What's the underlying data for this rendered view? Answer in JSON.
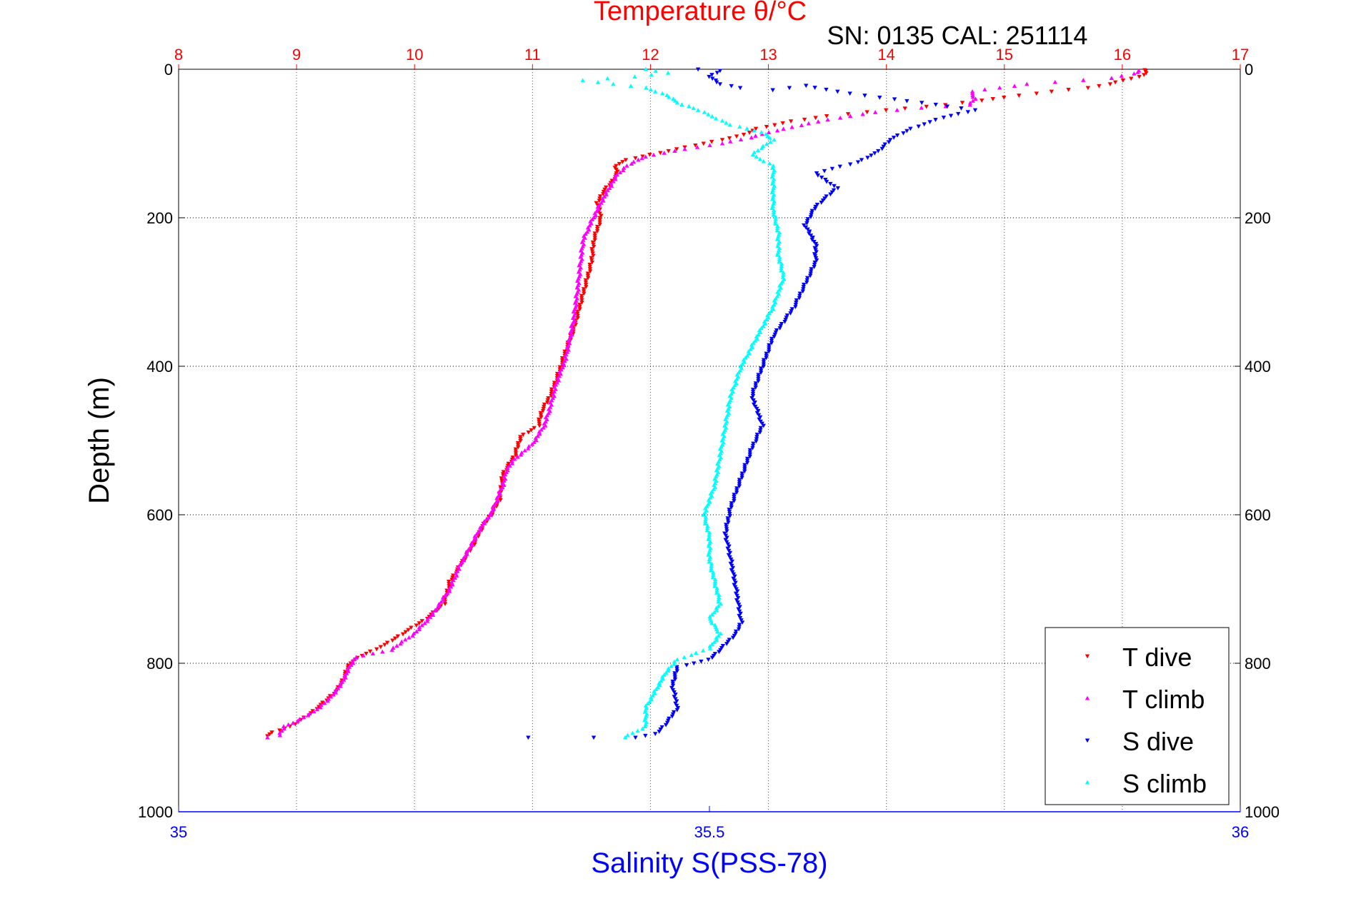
{
  "chart_data": {
    "type": "scatter",
    "title": "Temperature θ/°C",
    "subtitle": "SN: 0135  CAL: 251114",
    "ylabel": "Depth (m)",
    "xlabel": "Salinity S(PSS-78)",
    "ylim": [
      0,
      1000
    ],
    "y_reversed": true,
    "temperature_axis": {
      "position": "top",
      "range": [
        8,
        17
      ],
      "ticks": [
        "8",
        "9",
        "10",
        "11",
        "12",
        "13",
        "14",
        "15",
        "16",
        "17"
      ],
      "color": "#ff0000"
    },
    "salinity_axis": {
      "position": "bottom",
      "range": [
        35,
        36
      ],
      "ticks": [
        "35",
        "35.5",
        "36"
      ],
      "tick_values": [
        35,
        35.5,
        36
      ],
      "color": "#0000ff"
    },
    "depth_ticks": [
      "0",
      "200",
      "400",
      "600",
      "800",
      "1000"
    ],
    "depth_tick_values": [
      0,
      200,
      400,
      600,
      800,
      1000
    ],
    "grid": true,
    "legend_position": "bottom-right",
    "series": [
      {
        "name": "T dive",
        "axis": "temperature",
        "color": "#ff0000",
        "marker": "triangle-down",
        "points": [
          [
            16.2,
            1
          ],
          [
            16.2,
            5
          ],
          [
            16.15,
            10
          ],
          [
            16.0,
            15
          ],
          [
            15.9,
            20
          ],
          [
            15.7,
            25
          ],
          [
            15.4,
            30
          ],
          [
            15.0,
            38
          ],
          [
            14.8,
            42
          ],
          [
            14.5,
            48
          ],
          [
            14.0,
            55
          ],
          [
            13.5,
            63
          ],
          [
            13.2,
            70
          ],
          [
            12.9,
            80
          ],
          [
            12.8,
            88
          ],
          [
            12.6,
            95
          ],
          [
            12.3,
            105
          ],
          [
            12.0,
            115
          ],
          [
            11.8,
            122
          ],
          [
            11.7,
            130
          ],
          [
            11.72,
            140
          ],
          [
            11.68,
            150
          ],
          [
            11.6,
            165
          ],
          [
            11.55,
            180
          ],
          [
            11.58,
            200
          ],
          [
            11.55,
            215
          ],
          [
            11.52,
            230
          ],
          [
            11.5,
            260
          ],
          [
            11.45,
            290
          ],
          [
            11.4,
            320
          ],
          [
            11.35,
            350
          ],
          [
            11.28,
            380
          ],
          [
            11.22,
            410
          ],
          [
            11.15,
            440
          ],
          [
            11.08,
            460
          ],
          [
            11.05,
            480
          ],
          [
            10.9,
            495
          ],
          [
            10.85,
            520
          ],
          [
            10.75,
            545
          ],
          [
            10.72,
            580
          ],
          [
            10.65,
            600
          ],
          [
            10.58,
            615
          ],
          [
            10.5,
            640
          ],
          [
            10.4,
            665
          ],
          [
            10.3,
            690
          ],
          [
            10.25,
            720
          ],
          [
            10.1,
            740
          ],
          [
            9.95,
            755
          ],
          [
            9.75,
            775
          ],
          [
            9.55,
            790
          ],
          [
            9.45,
            800
          ],
          [
            9.4,
            820
          ],
          [
            9.35,
            835
          ],
          [
            9.25,
            850
          ],
          [
            9.1,
            870
          ],
          [
            8.95,
            885
          ],
          [
            8.8,
            893
          ],
          [
            8.75,
            898
          ]
        ]
      },
      {
        "name": "T climb",
        "axis": "temperature",
        "color": "#ff00ff",
        "marker": "triangle-up",
        "points": [
          [
            8.75,
            900
          ],
          [
            8.85,
            897
          ],
          [
            8.9,
            885
          ],
          [
            9.0,
            878
          ],
          [
            9.15,
            865
          ],
          [
            9.28,
            848
          ],
          [
            9.38,
            828
          ],
          [
            9.45,
            805
          ],
          [
            9.5,
            792
          ],
          [
            9.8,
            782
          ],
          [
            10.0,
            760
          ],
          [
            10.15,
            735
          ],
          [
            10.3,
            700
          ],
          [
            10.38,
            670
          ],
          [
            10.45,
            650
          ],
          [
            10.55,
            620
          ],
          [
            10.65,
            598
          ],
          [
            10.75,
            560
          ],
          [
            10.78,
            540
          ],
          [
            10.85,
            525
          ],
          [
            11.0,
            505
          ],
          [
            11.1,
            480
          ],
          [
            11.15,
            455
          ],
          [
            11.2,
            425
          ],
          [
            11.28,
            390
          ],
          [
            11.32,
            360
          ],
          [
            11.35,
            335
          ],
          [
            11.38,
            300
          ],
          [
            11.4,
            270
          ],
          [
            11.43,
            230
          ],
          [
            11.5,
            205
          ],
          [
            11.58,
            180
          ],
          [
            11.65,
            160
          ],
          [
            11.72,
            142
          ],
          [
            11.8,
            130
          ],
          [
            11.9,
            122
          ],
          [
            11.95,
            118
          ],
          [
            12.2,
            110
          ],
          [
            12.6,
            100
          ],
          [
            12.85,
            92
          ],
          [
            13.0,
            85
          ],
          [
            13.2,
            78
          ],
          [
            13.5,
            68
          ],
          [
            13.9,
            58
          ],
          [
            14.3,
            52
          ],
          [
            14.7,
            48
          ],
          [
            14.75,
            40
          ],
          [
            14.72,
            30
          ],
          [
            15.2,
            20
          ],
          [
            15.9,
            12
          ],
          [
            16.1,
            6
          ],
          [
            16.15,
            2
          ]
        ]
      },
      {
        "name": "S dive",
        "axis": "salinity",
        "color": "#0000ff",
        "marker": "triangle-down",
        "points": [
          [
            35.49,
            0
          ],
          [
            35.51,
            2
          ],
          [
            35.5,
            10
          ],
          [
            35.51,
            20
          ],
          [
            35.53,
            25
          ],
          [
            35.56,
            28
          ],
          [
            35.59,
            22
          ],
          [
            35.62,
            30
          ],
          [
            35.66,
            38
          ],
          [
            35.7,
            45
          ],
          [
            35.75,
            55
          ],
          [
            35.72,
            65
          ],
          [
            35.69,
            80
          ],
          [
            35.67,
            95
          ],
          [
            35.66,
            110
          ],
          [
            35.64,
            125
          ],
          [
            35.6,
            140
          ],
          [
            35.62,
            160
          ],
          [
            35.6,
            185
          ],
          [
            35.59,
            210
          ],
          [
            35.6,
            235
          ],
          [
            35.6,
            260
          ],
          [
            35.59,
            290
          ],
          [
            35.58,
            320
          ],
          [
            35.56,
            360
          ],
          [
            35.55,
            400
          ],
          [
            35.54,
            440
          ],
          [
            35.55,
            480
          ],
          [
            35.54,
            510
          ],
          [
            35.53,
            550
          ],
          [
            35.52,
            590
          ],
          [
            35.515,
            625
          ],
          [
            35.52,
            660
          ],
          [
            35.525,
            700
          ],
          [
            35.53,
            745
          ],
          [
            35.525,
            760
          ],
          [
            35.51,
            782
          ],
          [
            35.5,
            795
          ],
          [
            35.47,
            805
          ],
          [
            35.465,
            830
          ],
          [
            35.47,
            860
          ],
          [
            35.46,
            880
          ],
          [
            35.45,
            895
          ],
          [
            35.43,
            900
          ],
          [
            35.39,
            900
          ],
          [
            35.33,
            900
          ]
        ]
      },
      {
        "name": "S climb",
        "axis": "salinity",
        "color": "#00ffff",
        "marker": "triangle-up",
        "points": [
          [
            35.42,
            900
          ],
          [
            35.44,
            885
          ],
          [
            35.44,
            860
          ],
          [
            35.45,
            835
          ],
          [
            35.46,
            810
          ],
          [
            35.47,
            795
          ],
          [
            35.5,
            780
          ],
          [
            35.51,
            760
          ],
          [
            35.5,
            740
          ],
          [
            35.51,
            720
          ],
          [
            35.505,
            690
          ],
          [
            35.5,
            660
          ],
          [
            35.5,
            630
          ],
          [
            35.495,
            600
          ],
          [
            35.505,
            560
          ],
          [
            35.51,
            520
          ],
          [
            35.515,
            480
          ],
          [
            35.52,
            440
          ],
          [
            35.53,
            400
          ],
          [
            35.545,
            360
          ],
          [
            35.56,
            320
          ],
          [
            35.57,
            280
          ],
          [
            35.565,
            250
          ],
          [
            35.565,
            220
          ],
          [
            35.56,
            190
          ],
          [
            35.56,
            160
          ],
          [
            35.56,
            130
          ],
          [
            35.54,
            115
          ],
          [
            35.56,
            95
          ],
          [
            35.55,
            85
          ],
          [
            35.52,
            75
          ],
          [
            35.49,
            55
          ],
          [
            35.47,
            45
          ],
          [
            35.46,
            35
          ],
          [
            35.44,
            25
          ],
          [
            35.41,
            20
          ],
          [
            35.38,
            15
          ],
          [
            35.43,
            10
          ],
          [
            35.46,
            5
          ],
          [
            35.44,
            0
          ]
        ]
      }
    ]
  }
}
